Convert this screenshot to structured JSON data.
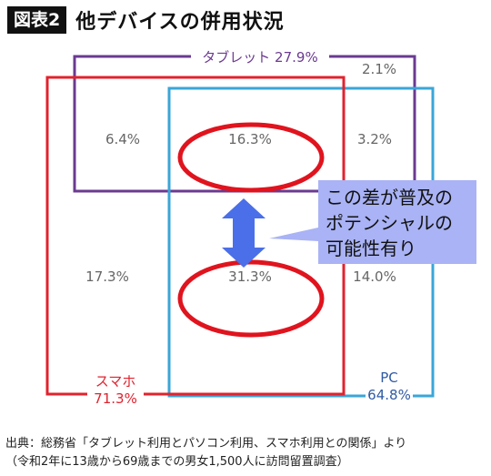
{
  "header": {
    "badge": "図表2",
    "title": "他デバイスの併用状況"
  },
  "chart_data": {
    "type": "venn",
    "sets": [
      {
        "name": "タブレット",
        "value": 27.9,
        "unit": "%",
        "color": "#6b3a91"
      },
      {
        "name": "スマホ",
        "value": 71.3,
        "unit": "%",
        "color": "#e0232e"
      },
      {
        "name": "PC",
        "value": 64.8,
        "unit": "%",
        "color": "#3aa6d8"
      }
    ],
    "regions": [
      {
        "label": "6.4%",
        "value": 6.4,
        "sets": [
          "タブレット",
          "スマホ"
        ]
      },
      {
        "label": "16.3%",
        "value": 16.3,
        "sets": [
          "タブレット",
          "スマホ",
          "PC"
        ]
      },
      {
        "label": "3.2%",
        "value": 3.2,
        "sets": [
          "タブレット",
          "PC"
        ]
      },
      {
        "label": "2.1%",
        "value": 2.1,
        "sets": [
          "タブレット"
        ]
      },
      {
        "label": "17.3%",
        "value": 17.3,
        "sets": [
          "スマホ"
        ]
      },
      {
        "label": "31.3%",
        "value": 31.3,
        "sets": [
          "スマホ",
          "PC"
        ]
      },
      {
        "label": "14.0%",
        "value": 14.0,
        "sets": [
          "PC"
        ]
      }
    ],
    "annotation": {
      "lines": [
        "この差が普及の",
        "ポテンシャルの",
        "可能性有り"
      ]
    }
  },
  "colors": {
    "tablet": "#6b3a91",
    "smartphone": "#e0232e",
    "pc": "#3aa6d8",
    "pc_label": "#2f5aa3",
    "region_text": "#666666",
    "callout_fill": "#a9b3f5",
    "arrow": "#4a6fe8",
    "highlight": "#e0141e"
  },
  "set_labels": {
    "tablet": "タブレット 27.9%",
    "smartphone_name": "スマホ",
    "smartphone_value": "71.3%",
    "pc_name": "PC",
    "pc_value": "64.8%"
  },
  "source": {
    "line1": "出典：総務省「タブレット利用とパソコン利用、スマホ利用との関係」より",
    "line2": "（令和2年に13歳から69歳までの男女1,500人に訪問留置調査）"
  }
}
